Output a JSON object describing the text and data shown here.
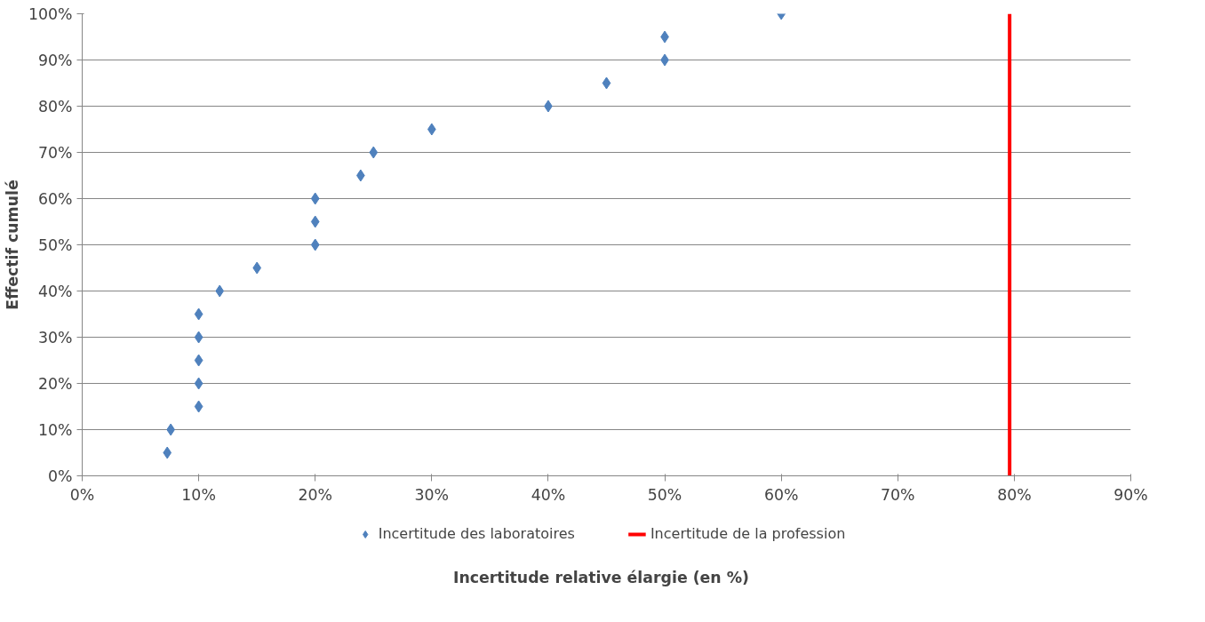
{
  "chart_data": {
    "type": "scatter",
    "xlabel": "Incertitude relative élargie (en %)",
    "ylabel": "Effectif cumulé",
    "xlim": [
      0,
      90
    ],
    "ylim": [
      0,
      100
    ],
    "xticks": [
      {
        "value": 0,
        "label": "0%"
      },
      {
        "value": 10,
        "label": "10%"
      },
      {
        "value": 20,
        "label": "20%"
      },
      {
        "value": 30,
        "label": "30%"
      },
      {
        "value": 40,
        "label": "40%"
      },
      {
        "value": 50,
        "label": "50%"
      },
      {
        "value": 60,
        "label": "60%"
      },
      {
        "value": 70,
        "label": "70%"
      },
      {
        "value": 80,
        "label": "80%"
      },
      {
        "value": 90,
        "label": "90%"
      }
    ],
    "yticks": [
      {
        "value": 0,
        "label": "0%"
      },
      {
        "value": 10,
        "label": "10%"
      },
      {
        "value": 20,
        "label": "20%"
      },
      {
        "value": 30,
        "label": "30%"
      },
      {
        "value": 40,
        "label": "40%"
      },
      {
        "value": 50,
        "label": "50%"
      },
      {
        "value": 60,
        "label": "60%"
      },
      {
        "value": 70,
        "label": "70%"
      },
      {
        "value": 80,
        "label": "80%"
      },
      {
        "value": 90,
        "label": "90%"
      },
      {
        "value": 100,
        "label": "100%"
      }
    ],
    "grid": "y",
    "legend": "bottom",
    "series": [
      {
        "name": "Incertitude des laboratoires",
        "marker": "diamond",
        "color": "#4f81bd",
        "x": [
          7.3,
          7.6,
          10,
          10,
          10,
          10,
          10,
          11.8,
          15,
          20,
          20,
          20,
          23.9,
          25,
          30,
          40,
          45,
          50,
          50,
          60
        ],
        "values": [
          5,
          10,
          15,
          20,
          25,
          30,
          35,
          40,
          45,
          50,
          55,
          60,
          65,
          70,
          75,
          80,
          85,
          90,
          95,
          100
        ]
      },
      {
        "name": "Incertitude de la profession",
        "type": "line",
        "color": "#ff0000",
        "x": [
          79.6,
          79.6
        ],
        "values": [
          0,
          100
        ]
      }
    ]
  }
}
